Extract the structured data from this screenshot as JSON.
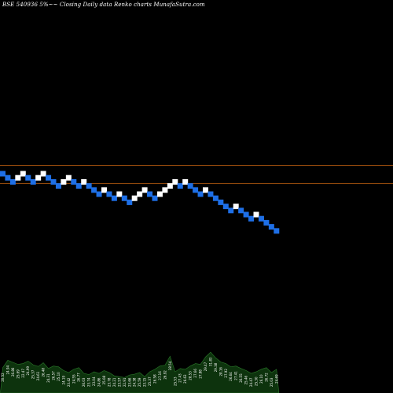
{
  "chart_data": {
    "type": "renko",
    "title": "BSE 540936  5%~~  Closing Daily data  Renko  charts MunafaSutra.com",
    "colors": {
      "background": "#000000",
      "up_brick": "#ffffff",
      "down_brick": "#1e6fe6",
      "reference_line": "#c06010",
      "volume_area": "#0d330d",
      "volume_outline": "#2b7a2b",
      "volume_label": "#ffffff"
    },
    "reference_lines": [
      0.0,
      1.77
    ],
    "bricks": [
      {
        "dir": "down",
        "level": 0
      },
      {
        "dir": "down",
        "level": -1
      },
      {
        "dir": "down",
        "level": -2
      },
      {
        "dir": "up",
        "level": -1
      },
      {
        "dir": "up",
        "level": 0
      },
      {
        "dir": "down",
        "level": -1
      },
      {
        "dir": "down",
        "level": -2
      },
      {
        "dir": "up",
        "level": -1
      },
      {
        "dir": "up",
        "level": 0
      },
      {
        "dir": "down",
        "level": -1
      },
      {
        "dir": "down",
        "level": -2
      },
      {
        "dir": "down",
        "level": -3
      },
      {
        "dir": "up",
        "level": -2
      },
      {
        "dir": "up",
        "level": -1
      },
      {
        "dir": "down",
        "level": -2
      },
      {
        "dir": "down",
        "level": -3
      },
      {
        "dir": "up",
        "level": -2
      },
      {
        "dir": "down",
        "level": -3
      },
      {
        "dir": "down",
        "level": -4
      },
      {
        "dir": "down",
        "level": -5
      },
      {
        "dir": "up",
        "level": -4
      },
      {
        "dir": "down",
        "level": -5
      },
      {
        "dir": "down",
        "level": -6
      },
      {
        "dir": "up",
        "level": -5
      },
      {
        "dir": "down",
        "level": -6
      },
      {
        "dir": "down",
        "level": -7
      },
      {
        "dir": "up",
        "level": -6
      },
      {
        "dir": "up",
        "level": -5
      },
      {
        "dir": "up",
        "level": -4
      },
      {
        "dir": "down",
        "level": -5
      },
      {
        "dir": "down",
        "level": -6
      },
      {
        "dir": "up",
        "level": -5
      },
      {
        "dir": "up",
        "level": -4
      },
      {
        "dir": "up",
        "level": -3
      },
      {
        "dir": "up",
        "level": -2
      },
      {
        "dir": "down",
        "level": -3
      },
      {
        "dir": "up",
        "level": -2
      },
      {
        "dir": "down",
        "level": -3
      },
      {
        "dir": "down",
        "level": -4
      },
      {
        "dir": "down",
        "level": -5
      },
      {
        "dir": "up",
        "level": -4
      },
      {
        "dir": "down",
        "level": -5
      },
      {
        "dir": "down",
        "level": -6
      },
      {
        "dir": "down",
        "level": -7
      },
      {
        "dir": "down",
        "level": -8
      },
      {
        "dir": "down",
        "level": -9
      },
      {
        "dir": "up",
        "level": -8
      },
      {
        "dir": "down",
        "level": -9
      },
      {
        "dir": "down",
        "level": -10
      },
      {
        "dir": "down",
        "level": -11
      },
      {
        "dir": "up",
        "level": -10
      },
      {
        "dir": "down",
        "level": -11
      },
      {
        "dir": "down",
        "level": -12
      },
      {
        "dir": "down",
        "level": -13
      },
      {
        "dir": "down",
        "level": -14
      }
    ],
    "volume": [
      0.62,
      0.8,
      0.75,
      0.7,
      0.72,
      0.78,
      0.69,
      0.65,
      0.74,
      0.6,
      0.66,
      0.64,
      0.55,
      0.5,
      0.58,
      0.62,
      0.48,
      0.45,
      0.52,
      0.48,
      0.55,
      0.5,
      0.42,
      0.4,
      0.38,
      0.44,
      0.46,
      0.5,
      0.4,
      0.52,
      0.58,
      0.66,
      0.68,
      0.9,
      0.52,
      0.6,
      0.58,
      0.66,
      0.72,
      0.7,
      0.88,
      1.0,
      0.86,
      0.76,
      0.72,
      0.64,
      0.66,
      0.6,
      0.55,
      0.48,
      0.52,
      0.58,
      0.62,
      0.5,
      0.58
    ],
    "volume_labels": [
      "20.52",
      "24.94",
      "26.86",
      "25.69",
      "22.47",
      "24.99",
      "25.37",
      "24.61",
      "26.48",
      "24.31",
      "26.57",
      "25.10",
      "24.19",
      "23.42",
      "24.55",
      "26.77",
      "26.03",
      "23.74",
      "23.04",
      "24.86",
      "25.08",
      "23.78",
      "24.21",
      "23.57",
      "22.91",
      "23.66",
      "24.38",
      "25.59",
      "23.15",
      "25.37",
      "26.58",
      "27.16",
      "26.92",
      "28.54",
      "25.53",
      "27.43",
      "26.63",
      "28.53",
      "27.66",
      "27.88",
      "29.47",
      "31.83",
      "29.38",
      "28.16",
      "27.92",
      "26.64",
      "27.41",
      "26.55",
      "25.46",
      "24.47",
      "25.30",
      "26.10",
      "26.72",
      "25.03",
      "24.69"
    ]
  }
}
